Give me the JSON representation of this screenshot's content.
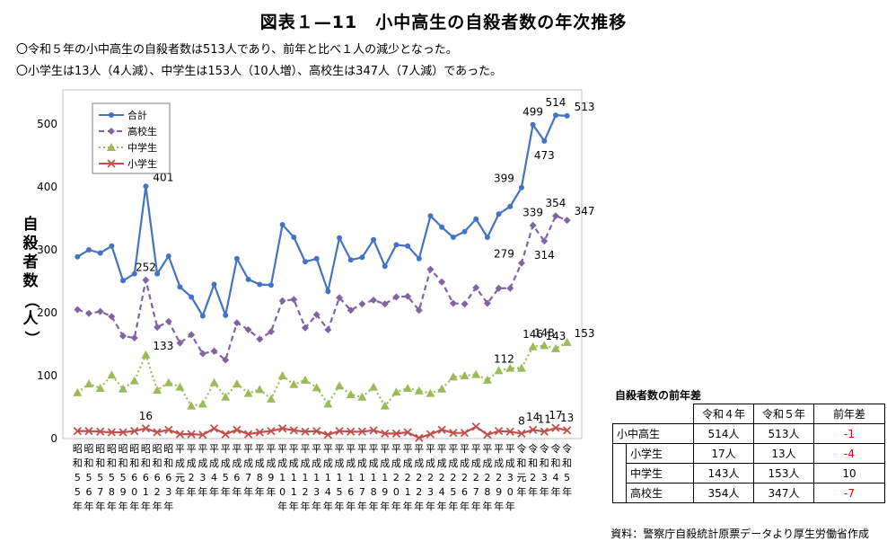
{
  "title": "図表１—11　小中高生の自殺者数の年次推移",
  "notes": [
    "〇令和５年の小中高生の自殺者数は513人であり、前年と比べ１人の減少となった。",
    "〇小学生は13人（4人減）、中学生は153人（10人増）、高校生は347人（7人減）であった。"
  ],
  "source": "資料：警察庁自殺統計原票データより厚生労働省作成",
  "chart_data": {
    "type": "line",
    "ylabel": "自殺者数（人）",
    "ylim": [
      0,
      550
    ],
    "yticks": [
      0,
      100,
      200,
      300,
      400,
      500
    ],
    "categories": [
      "昭和55年",
      "昭和56年",
      "昭和57年",
      "昭和58年",
      "昭和59年",
      "昭和60年",
      "昭和61年",
      "昭和62年",
      "昭和63年",
      "平成元年",
      "平成2年",
      "平成3年",
      "平成4年",
      "平成5年",
      "平成6年",
      "平成7年",
      "平成8年",
      "平成9年",
      "平成10年",
      "平成11年",
      "平成12年",
      "平成13年",
      "平成14年",
      "平成15年",
      "平成16年",
      "平成17年",
      "平成18年",
      "平成19年",
      "平成20年",
      "平成21年",
      "平成22年",
      "平成23年",
      "平成24年",
      "平成25年",
      "平成26年",
      "平成27年",
      "平成28年",
      "平成29年",
      "平成30年",
      "令和元年",
      "令和2年",
      "令和3年",
      "令和4年",
      "令和5年"
    ],
    "tick_columns": [
      [
        "昭",
        "和",
        "5",
        "5",
        "年"
      ],
      [
        "昭",
        "和",
        "5",
        "6",
        "年"
      ],
      [
        "昭",
        "和",
        "5",
        "7",
        "年"
      ],
      [
        "昭",
        "和",
        "5",
        "8",
        "年"
      ],
      [
        "昭",
        "和",
        "5",
        "9",
        "年"
      ],
      [
        "昭",
        "和",
        "6",
        "0",
        "年"
      ],
      [
        "昭",
        "和",
        "6",
        "1",
        "年"
      ],
      [
        "昭",
        "和",
        "6",
        "2",
        "年"
      ],
      [
        "昭",
        "和",
        "6",
        "3",
        "年"
      ],
      [
        "平",
        "成",
        "元",
        "年"
      ],
      [
        "平",
        "成",
        "2",
        "年"
      ],
      [
        "平",
        "成",
        "3",
        "年"
      ],
      [
        "平",
        "成",
        "4",
        "年"
      ],
      [
        "平",
        "成",
        "5",
        "年"
      ],
      [
        "平",
        "成",
        "6",
        "年"
      ],
      [
        "平",
        "成",
        "7",
        "年"
      ],
      [
        "平",
        "成",
        "8",
        "年"
      ],
      [
        "平",
        "成",
        "9",
        "年"
      ],
      [
        "平",
        "成",
        "1",
        "0",
        "年"
      ],
      [
        "平",
        "成",
        "1",
        "1",
        "年"
      ],
      [
        "平",
        "成",
        "1",
        "2",
        "年"
      ],
      [
        "平",
        "成",
        "1",
        "3",
        "年"
      ],
      [
        "平",
        "成",
        "1",
        "4",
        "年"
      ],
      [
        "平",
        "成",
        "1",
        "5",
        "年"
      ],
      [
        "平",
        "成",
        "1",
        "6",
        "年"
      ],
      [
        "平",
        "成",
        "1",
        "7",
        "年"
      ],
      [
        "平",
        "成",
        "1",
        "8",
        "年"
      ],
      [
        "平",
        "成",
        "1",
        "9",
        "年"
      ],
      [
        "平",
        "成",
        "2",
        "0",
        "年"
      ],
      [
        "平",
        "成",
        "2",
        "1",
        "年"
      ],
      [
        "平",
        "成",
        "2",
        "2",
        "年"
      ],
      [
        "平",
        "成",
        "2",
        "3",
        "年"
      ],
      [
        "平",
        "成",
        "2",
        "4",
        "年"
      ],
      [
        "平",
        "成",
        "2",
        "5",
        "年"
      ],
      [
        "平",
        "成",
        "2",
        "6",
        "年"
      ],
      [
        "平",
        "成",
        "2",
        "7",
        "年"
      ],
      [
        "平",
        "成",
        "2",
        "8",
        "年"
      ],
      [
        "平",
        "成",
        "2",
        "9",
        "年"
      ],
      [
        "平",
        "成",
        "3",
        "0",
        "年"
      ],
      [
        "令",
        "和",
        "元",
        "年"
      ],
      [
        "令",
        "和",
        "2",
        "年"
      ],
      [
        "令",
        "和",
        "3",
        "年"
      ],
      [
        "令",
        "和",
        "4",
        "年"
      ],
      [
        "令",
        "和",
        "5",
        "年"
      ]
    ],
    "series": [
      {
        "name": "合計",
        "color": "#4472c4",
        "style": "solid",
        "marker": "circle",
        "values": [
          289,
          300,
          295,
          306,
          251,
          262,
          401,
          262,
          290,
          241,
          225,
          195,
          245,
          196,
          286,
          253,
          245,
          244,
          340,
          320,
          281,
          286,
          234,
          319,
          284,
          288,
          316,
          274,
          308,
          306,
          286,
          354,
          336,
          320,
          329,
          349,
          320,
          357,
          369,
          399,
          499,
          473,
          514,
          513
        ]
      },
      {
        "name": "高校生",
        "color": "#8064a2",
        "style": "dashed",
        "marker": "diamond",
        "values": [
          205,
          199,
          202,
          194,
          163,
          160,
          252,
          177,
          186,
          152,
          165,
          135,
          139,
          125,
          184,
          173,
          158,
          170,
          219,
          221,
          176,
          197,
          173,
          224,
          204,
          214,
          220,
          214,
          225,
          226,
          204,
          269,
          249,
          215,
          214,
          240,
          215,
          239,
          239,
          279,
          339,
          314,
          354,
          347
        ]
      },
      {
        "name": "中学生",
        "color": "#9bbb59",
        "style": "dotted",
        "marker": "triangle",
        "values": [
          73,
          87,
          80,
          101,
          79,
          92,
          133,
          77,
          89,
          82,
          52,
          55,
          89,
          66,
          87,
          72,
          78,
          63,
          100,
          86,
          93,
          81,
          55,
          84,
          70,
          66,
          82,
          52,
          74,
          80,
          76,
          72,
          79,
          98,
          100,
          102,
          93,
          108,
          112,
          112,
          146,
          148,
          143,
          153
        ]
      },
      {
        "name": "小学生",
        "color": "#c0504d",
        "style": "solid",
        "marker": "x",
        "values": [
          12,
          12,
          11,
          10,
          10,
          12,
          16,
          10,
          14,
          7,
          7,
          6,
          16,
          7,
          14,
          7,
          10,
          12,
          16,
          13,
          11,
          12,
          6,
          12,
          11,
          11,
          13,
          8,
          8,
          10,
          1,
          7,
          14,
          9,
          9,
          19,
          6,
          12,
          11,
          8,
          14,
          11,
          17,
          13
        ]
      }
    ],
    "annotations": [
      {
        "series": "合計",
        "index": 6,
        "text": "401",
        "pos": "right"
      },
      {
        "series": "合計",
        "index": 39,
        "text": "399",
        "pos": "left"
      },
      {
        "series": "合計",
        "index": 40,
        "text": "499",
        "pos": "above"
      },
      {
        "series": "合計",
        "index": 41,
        "text": "473",
        "pos": "below"
      },
      {
        "series": "合計",
        "index": 42,
        "text": "514",
        "pos": "above"
      },
      {
        "series": "合計",
        "index": 43,
        "text": "513",
        "pos": "right"
      },
      {
        "series": "高校生",
        "index": 6,
        "text": "252",
        "pos": "above"
      },
      {
        "series": "高校生",
        "index": 39,
        "text": "279",
        "pos": "left"
      },
      {
        "series": "高校生",
        "index": 40,
        "text": "339",
        "pos": "above"
      },
      {
        "series": "高校生",
        "index": 41,
        "text": "314",
        "pos": "below"
      },
      {
        "series": "高校生",
        "index": 42,
        "text": "354",
        "pos": "above"
      },
      {
        "series": "高校生",
        "index": 43,
        "text": "347",
        "pos": "right"
      },
      {
        "series": "中学生",
        "index": 6,
        "text": "133",
        "pos": "right"
      },
      {
        "series": "中学生",
        "index": 39,
        "text": "112",
        "pos": "left"
      },
      {
        "series": "中学生",
        "index": 40,
        "text": "146",
        "pos": "above"
      },
      {
        "series": "中学生",
        "index": 41,
        "text": "148",
        "pos": "above"
      },
      {
        "series": "中学生",
        "index": 42,
        "text": "143",
        "pos": "above"
      },
      {
        "series": "中学生",
        "index": 43,
        "text": "153",
        "pos": "right"
      },
      {
        "series": "小学生",
        "index": 6,
        "text": "16",
        "pos": "above"
      },
      {
        "series": "小学生",
        "index": 39,
        "text": "8",
        "pos": "above"
      },
      {
        "series": "小学生",
        "index": 40,
        "text": "14",
        "pos": "above"
      },
      {
        "series": "小学生",
        "index": 41,
        "text": "11",
        "pos": "above"
      },
      {
        "series": "小学生",
        "index": 42,
        "text": "17",
        "pos": "above"
      },
      {
        "series": "小学生",
        "index": 43,
        "text": "13",
        "pos": "above"
      }
    ],
    "legend_position": "top-left"
  },
  "diff_table": {
    "caption": "自殺者数の前年差",
    "headers": [
      "",
      "令和４年",
      "令和５年",
      "前年差"
    ],
    "rows": [
      {
        "label": "小中高生",
        "r4": "514人",
        "r5": "513人",
        "diff": "-1",
        "negative": true
      },
      {
        "label": "小学生",
        "r4": "17人",
        "r5": "13人",
        "diff": "-4",
        "negative": true
      },
      {
        "label": "中学生",
        "r4": "143人",
        "r5": "153人",
        "diff": "10",
        "negative": false
      },
      {
        "label": "高校生",
        "r4": "354人",
        "r5": "347人",
        "diff": "-7",
        "negative": true
      }
    ]
  }
}
